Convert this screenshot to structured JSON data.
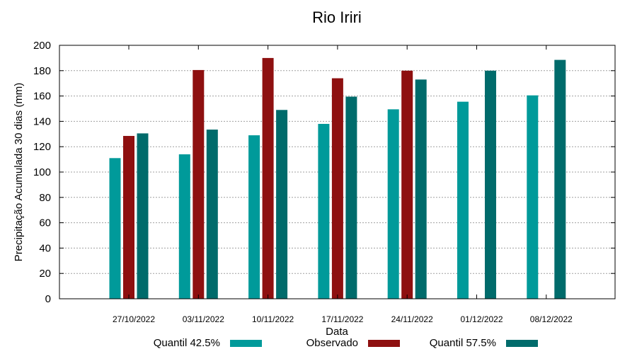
{
  "chart_data": {
    "type": "bar",
    "title": "Rio Iriri",
    "xlabel": "Data",
    "ylabel": "Precipitação Acumulada 30 dias (mm)",
    "ylim": [
      0,
      200
    ],
    "yticks": [
      0,
      20,
      40,
      60,
      80,
      100,
      120,
      140,
      160,
      180,
      200
    ],
    "grid": true,
    "legend_position": "bottom",
    "categories": [
      "27/10/2022",
      "03/11/2022",
      "10/11/2022",
      "17/11/2022",
      "24/11/2022",
      "01/12/2022",
      "08/12/2022"
    ],
    "series": [
      {
        "name": "Quantil 42.5%",
        "color": "#009a9a",
        "values": [
          111,
          114,
          129,
          138,
          149.5,
          155.5,
          160.5
        ]
      },
      {
        "name": "Observado",
        "color": "#8e1010",
        "values": [
          128.5,
          180.5,
          190,
          174,
          180,
          null,
          null
        ]
      },
      {
        "name": "Quantil 57.5%",
        "color": "#006b6b",
        "values": [
          130.5,
          133.5,
          149,
          159.5,
          173,
          180,
          188.5
        ]
      }
    ]
  }
}
